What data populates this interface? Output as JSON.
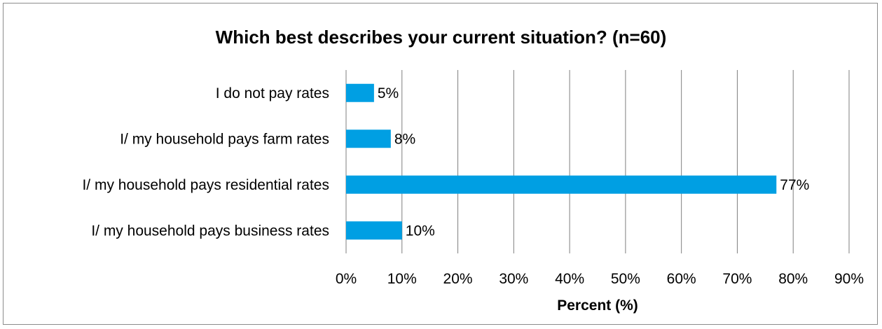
{
  "chart_data": {
    "type": "bar",
    "orientation": "horizontal",
    "title": "Which best describes your current situation? (n=60)",
    "xlabel": "Percent (%)",
    "ylabel": "",
    "categories": [
      "I do not pay rates",
      "I/ my household pays farm rates",
      "I/ my household pays residential rates",
      "I/ my household pays business rates"
    ],
    "values": [
      5,
      8,
      77,
      10
    ],
    "data_labels": [
      "5%",
      "8%",
      "77%",
      "10%"
    ],
    "xlim": [
      0,
      90
    ],
    "ticks": [
      0,
      10,
      20,
      30,
      40,
      50,
      60,
      70,
      80,
      90
    ],
    "tick_labels": [
      "0%",
      "10%",
      "20%",
      "30%",
      "40%",
      "50%",
      "60%",
      "70%",
      "80%",
      "90%"
    ],
    "grid": "vertical",
    "legend": "none",
    "bar_color": "#009FE3",
    "grid_color": "#7f7f7f"
  }
}
